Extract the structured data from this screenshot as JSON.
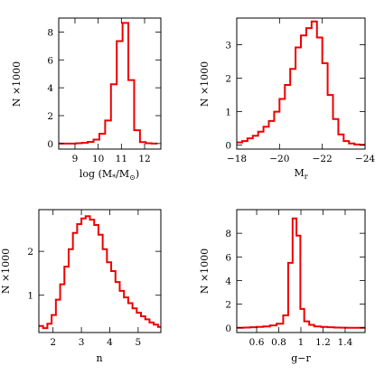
{
  "chart_data": [
    {
      "type": "histogram",
      "xlabel": "log (M*/M⊙)",
      "ylabel": "N ×1000",
      "xlim": [
        8.3,
        12.7
      ],
      "ylim": [
        -0.4,
        9.0
      ],
      "xticks": [
        9,
        10,
        11,
        12
      ],
      "xtick_labels": [
        "9",
        "10",
        "11",
        "12"
      ],
      "yticks": [
        0,
        2,
        4,
        6,
        8
      ],
      "ytick_labels": [
        "0",
        "2",
        "4",
        "6",
        "8"
      ],
      "edges": [
        8.3,
        8.55,
        8.8,
        9.05,
        9.3,
        9.55,
        9.8,
        10.05,
        10.3,
        10.55,
        10.8,
        11.05,
        11.3,
        11.55,
        11.8,
        12.05,
        12.3,
        12.55
      ],
      "values": [
        0.0,
        0.0,
        0.0,
        0.02,
        0.05,
        0.12,
        0.28,
        0.7,
        1.65,
        4.25,
        7.35,
        8.65,
        4.55,
        0.95,
        0.1,
        0.02,
        0.0
      ]
    },
    {
      "type": "histogram",
      "xlabel": "Mr",
      "ylabel": "N ×1000",
      "xlim": [
        -18,
        -24
      ],
      "ylim": [
        -0.12,
        3.8
      ],
      "xticks": [
        -18,
        -20,
        -22,
        -24
      ],
      "xtick_labels": [
        "−18",
        "−20",
        "−22",
        "−24"
      ],
      "yticks": [
        0,
        1,
        2,
        3
      ],
      "ytick_labels": [
        "0",
        "1",
        "2",
        "3"
      ],
      "edges": [
        -18.0,
        -18.25,
        -18.5,
        -18.75,
        -19.0,
        -19.25,
        -19.5,
        -19.75,
        -20.0,
        -20.25,
        -20.5,
        -20.75,
        -21.0,
        -21.25,
        -21.5,
        -21.75,
        -22.0,
        -22.25,
        -22.5,
        -22.75,
        -23.0,
        -23.25,
        -23.5,
        -23.75,
        -24.0
      ],
      "values": [
        0.08,
        0.12,
        0.2,
        0.28,
        0.4,
        0.55,
        0.72,
        1.0,
        1.38,
        1.8,
        2.28,
        2.92,
        3.28,
        3.5,
        3.7,
        3.22,
        2.45,
        1.5,
        0.78,
        0.32,
        0.12,
        0.05,
        0.02,
        0.01
      ]
    },
    {
      "type": "histogram",
      "xlabel": "n",
      "ylabel": "N ×1000",
      "xlim": [
        1.5,
        5.8
      ],
      "ylim": [
        0.15,
        2.95
      ],
      "xticks": [
        2,
        3,
        4,
        5
      ],
      "xtick_labels": [
        "2",
        "3",
        "4",
        "5"
      ],
      "yticks": [
        1,
        2
      ],
      "ytick_labels": [
        "1",
        "2"
      ],
      "edges": [
        1.5,
        1.65,
        1.8,
        1.95,
        2.1,
        2.25,
        2.4,
        2.55,
        2.7,
        2.85,
        3.0,
        3.15,
        3.3,
        3.45,
        3.6,
        3.75,
        3.9,
        4.05,
        4.2,
        4.35,
        4.5,
        4.65,
        4.8,
        4.95,
        5.1,
        5.25,
        5.4,
        5.55,
        5.7,
        5.8
      ],
      "values": [
        0.3,
        0.25,
        0.35,
        0.55,
        0.9,
        1.25,
        1.65,
        2.05,
        2.42,
        2.62,
        2.75,
        2.8,
        2.72,
        2.6,
        2.38,
        2.05,
        1.75,
        1.55,
        1.3,
        1.1,
        0.95,
        0.82,
        0.7,
        0.6,
        0.52,
        0.45,
        0.38,
        0.33,
        0.28
      ]
    },
    {
      "type": "histogram",
      "xlabel": "g−r",
      "ylabel": "N ×1000",
      "xlim": [
        0.42,
        1.58
      ],
      "ylim": [
        -0.4,
        10.0
      ],
      "xticks": [
        0.6,
        0.8,
        1.0,
        1.2,
        1.4
      ],
      "xtick_labels": [
        "0.6",
        "0.8",
        "1",
        "1.2",
        "1.4"
      ],
      "yticks": [
        0,
        2,
        4,
        6,
        8
      ],
      "ytick_labels": [
        "0",
        "2",
        "4",
        "6",
        "8"
      ],
      "edges": [
        0.42,
        0.48,
        0.54,
        0.6,
        0.66,
        0.72,
        0.78,
        0.84,
        0.885,
        0.925,
        0.96,
        0.995,
        1.03,
        1.075,
        1.12,
        1.18,
        1.24,
        1.3,
        1.36,
        1.42,
        1.48,
        1.54,
        1.58
      ],
      "values": [
        0.0,
        0.02,
        0.05,
        0.08,
        0.12,
        0.2,
        0.35,
        1.05,
        5.5,
        9.25,
        7.8,
        1.6,
        0.55,
        0.25,
        0.12,
        0.08,
        0.05,
        0.02,
        0.01,
        0.0,
        0.0,
        0.0
      ]
    }
  ]
}
